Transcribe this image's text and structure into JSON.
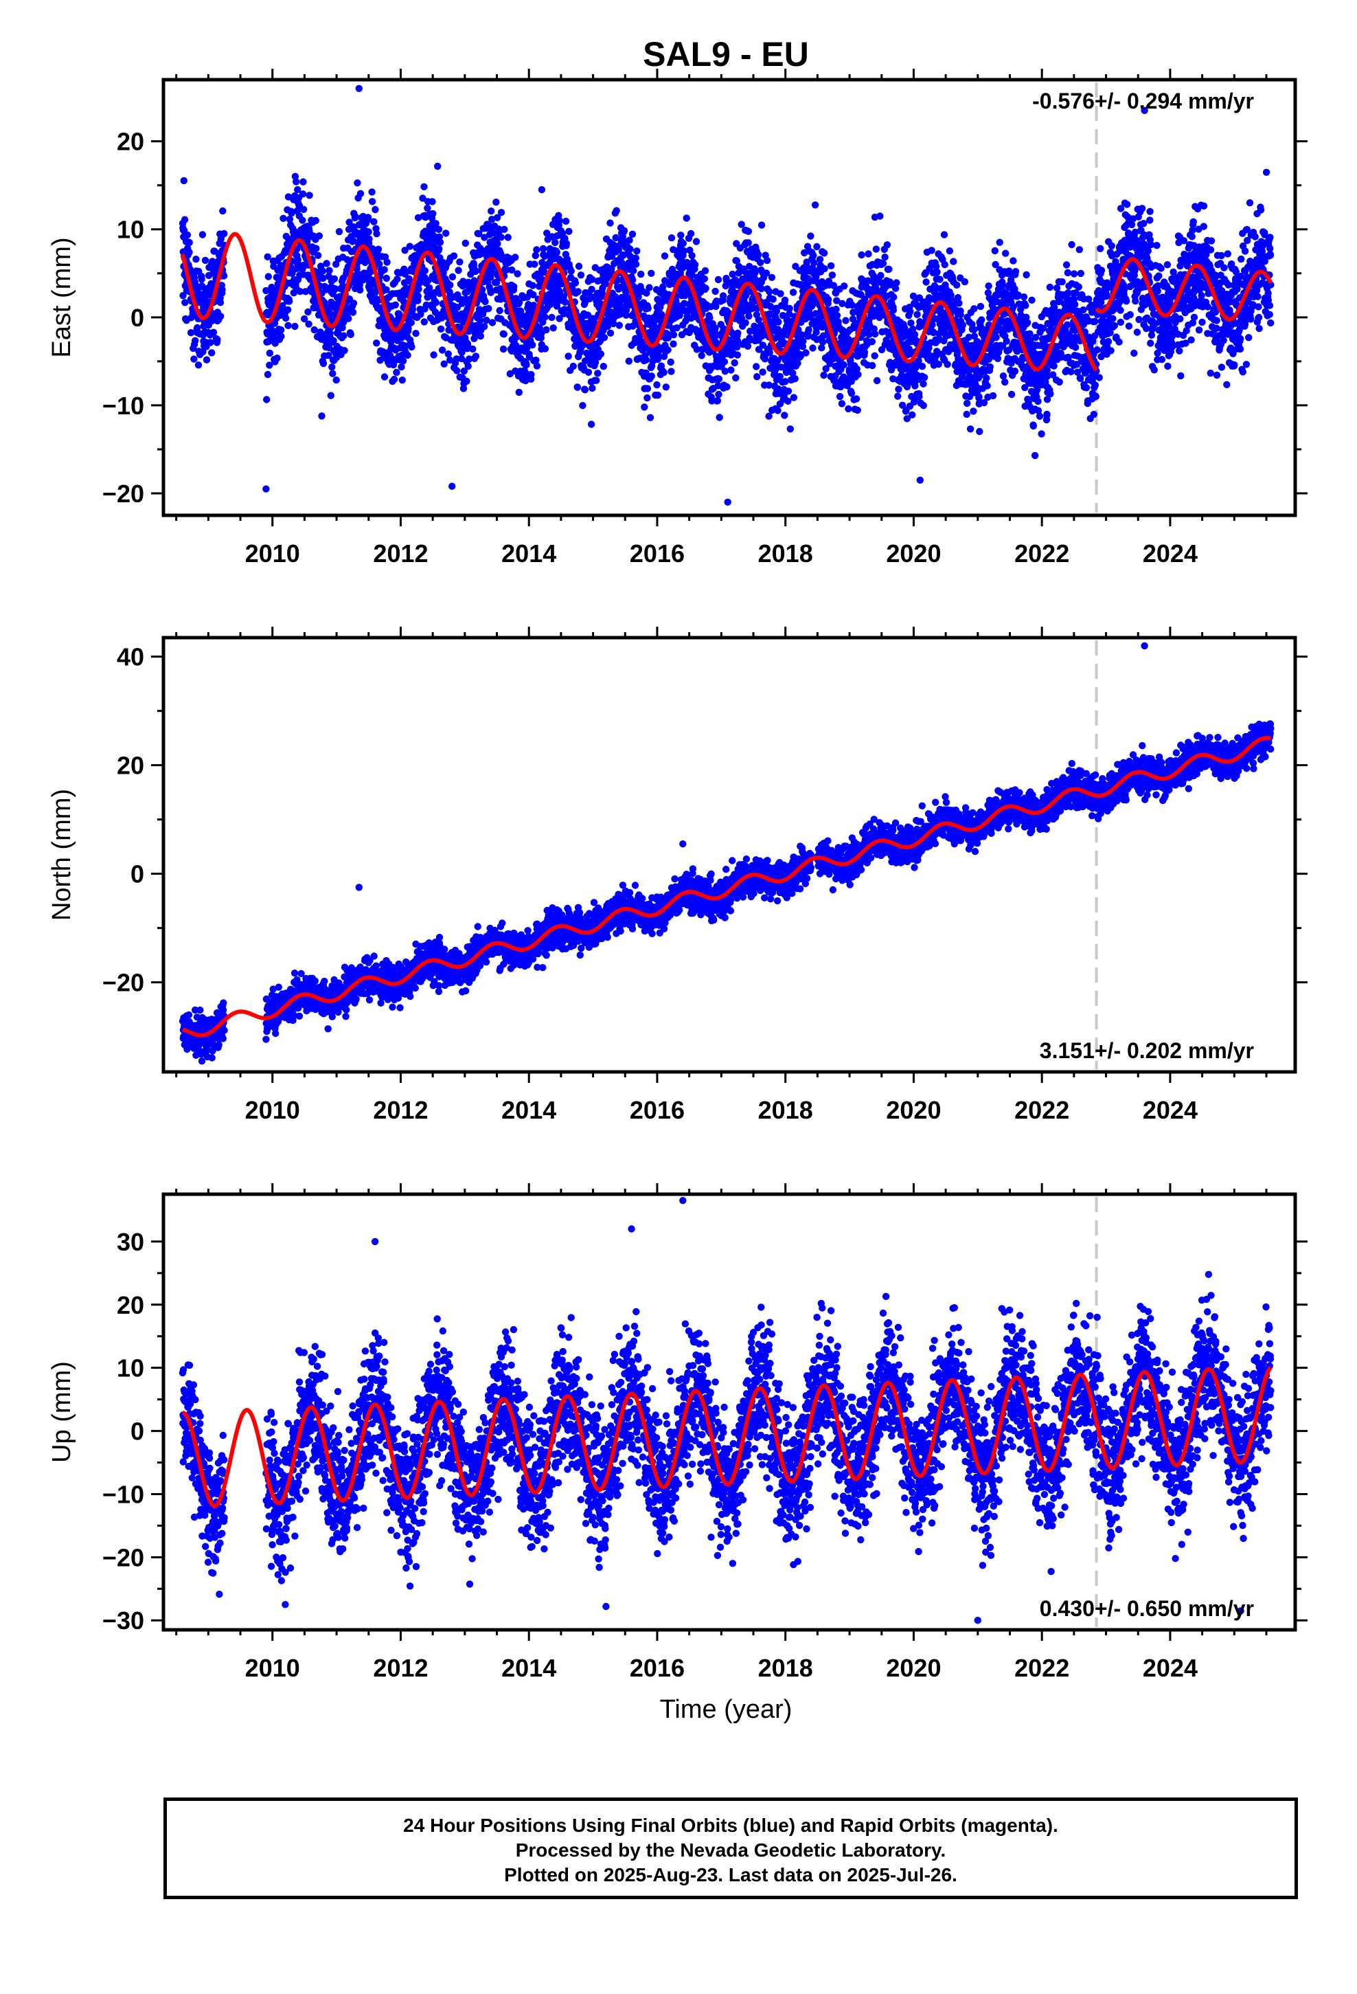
{
  "colors": {
    "final_orbits": "#0000ff",
    "model_fit": "#ff0000",
    "rapid_orbits_marker": "#c8c8c8",
    "axes": "#000000"
  },
  "chart_data": {
    "title": "SAL9 - EU",
    "xlabel": "Time (year)",
    "xlim": [
      2008.3,
      2025.95
    ],
    "x_ticks": [
      2010,
      2012,
      2014,
      2016,
      2018,
      2020,
      2022,
      2024
    ],
    "rapid_orbit_start": 2022.85,
    "data_start": 2008.6,
    "data_end": 2025.57,
    "panels": [
      {
        "type": "scatter",
        "name": "east",
        "ylabel": "East (mm)",
        "ylim": [
          -22.5,
          27
        ],
        "y_ticks": [
          -20,
          -10,
          0,
          10,
          20
        ],
        "rate_label": "-0.576+/- 0.294 mm/yr",
        "rate_position": "top-right",
        "model": {
          "offset": 0.2,
          "trend": -0.576,
          "amplitude_start": 5.0,
          "amplitude_end": 2.8,
          "phase_peak": 0.42,
          "rapid_step": 7.0
        },
        "noise_sigma": 3.2,
        "outliers": [
          [
            2011.35,
            26
          ],
          [
            2023.6,
            23.5
          ],
          [
            2017.1,
            -21
          ],
          [
            2009.9,
            -19.5
          ],
          [
            2020.1,
            -18.5
          ],
          [
            2012.8,
            -19.2
          ],
          [
            2014.2,
            14.5
          ]
        ]
      },
      {
        "type": "scatter",
        "name": "north",
        "ylabel": "North (mm)",
        "ylim": [
          -36.5,
          43.5
        ],
        "y_ticks": [
          -20,
          0,
          20,
          40
        ],
        "rate_label": "3.151+/- 0.202 mm/yr",
        "rate_position": "bottom-right",
        "model": {
          "offset": -3.0,
          "trend": 3.151,
          "amplitude_start": 1.3,
          "amplitude_end": 1.3,
          "phase_peak": 0.45,
          "rapid_step": 0
        },
        "noise_sigma": 1.6,
        "outliers": [
          [
            2023.6,
            42
          ],
          [
            2008.9,
            -34.5
          ],
          [
            2011.35,
            -2.5
          ],
          [
            2016.4,
            5.5
          ]
        ]
      },
      {
        "type": "scatter",
        "name": "up",
        "ylabel": "Up (mm)",
        "ylim": [
          -31.5,
          37.5
        ],
        "y_ticks": [
          -30,
          -20,
          -10,
          0,
          10,
          20,
          30
        ],
        "rate_label": "0.430+/- 0.650 mm/yr",
        "rate_position": "bottom-right",
        "model": {
          "offset": -1.0,
          "trend": 0.43,
          "amplitude_start": 7.5,
          "amplitude_end": 7.5,
          "phase_peak": 0.6,
          "rapid_step": 0
        },
        "noise_sigma": 5.2,
        "outliers": [
          [
            2016.4,
            36.5
          ],
          [
            2021.0,
            -30
          ],
          [
            2010.2,
            -27.5
          ],
          [
            2015.6,
            32
          ],
          [
            2011.6,
            30
          ],
          [
            2025.1,
            -28.5
          ]
        ]
      }
    ]
  },
  "footer": {
    "line1": "24 Hour Positions Using Final Orbits (blue) and Rapid Orbits (magenta).",
    "line2": "Processed by the Nevada Geodetic Laboratory.",
    "line3": "Plotted on 2025-Aug-23. Last data on 2025-Jul-26."
  }
}
